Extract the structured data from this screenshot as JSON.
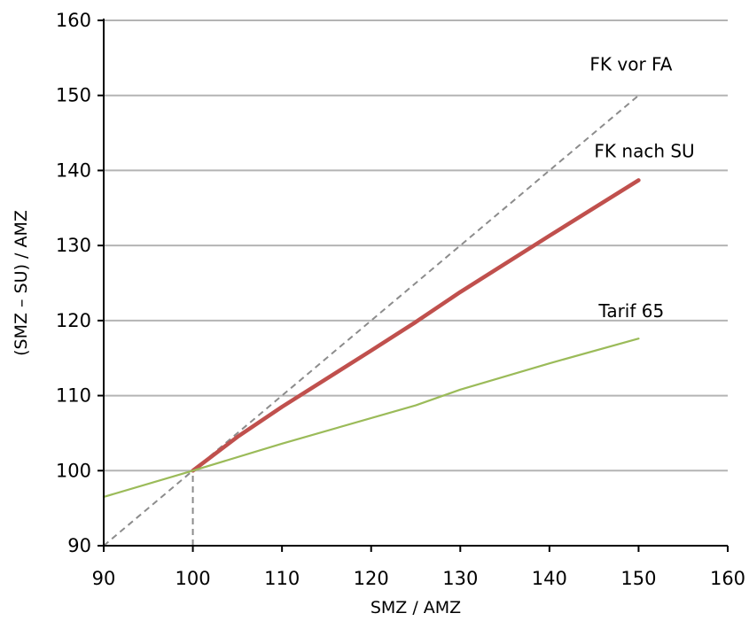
{
  "chart_data": {
    "type": "line",
    "xlabel": "SMZ / AMZ",
    "ylabel": "(SMZ – SU) / AMZ",
    "xlim": [
      90,
      160
    ],
    "ylim": [
      90,
      160
    ],
    "xticks": [
      90,
      100,
      110,
      120,
      130,
      140,
      150,
      160
    ],
    "yticks": [
      90,
      100,
      110,
      120,
      130,
      140,
      150,
      160
    ],
    "grid": "horizontal",
    "series": [
      {
        "name": "FK vor FA",
        "color": "#8c8c8c",
        "style": "dashed",
        "points": [
          [
            90,
            90
          ],
          [
            150,
            150
          ]
        ]
      },
      {
        "name": "FK nach SU",
        "color": "#c0504d",
        "style": "solid-thick",
        "points": [
          [
            100,
            100
          ],
          [
            105,
            104.5
          ],
          [
            110,
            108.5
          ],
          [
            120,
            116
          ],
          [
            125,
            119.8
          ],
          [
            130,
            123.8
          ],
          [
            140,
            131.3
          ],
          [
            150,
            138.7
          ]
        ]
      },
      {
        "name": "Tarif 65",
        "color": "#9bbb59",
        "style": "solid",
        "points": [
          [
            90,
            96.5
          ],
          [
            100,
            100
          ],
          [
            110,
            103.6
          ],
          [
            125,
            108.7
          ],
          [
            130,
            110.8
          ],
          [
            140,
            114.3
          ],
          [
            150,
            117.6
          ]
        ]
      }
    ],
    "guides": [
      {
        "color": "#8c8c8c",
        "style": "dashed",
        "points": [
          [
            100,
            90
          ],
          [
            100,
            100
          ]
        ]
      }
    ]
  }
}
